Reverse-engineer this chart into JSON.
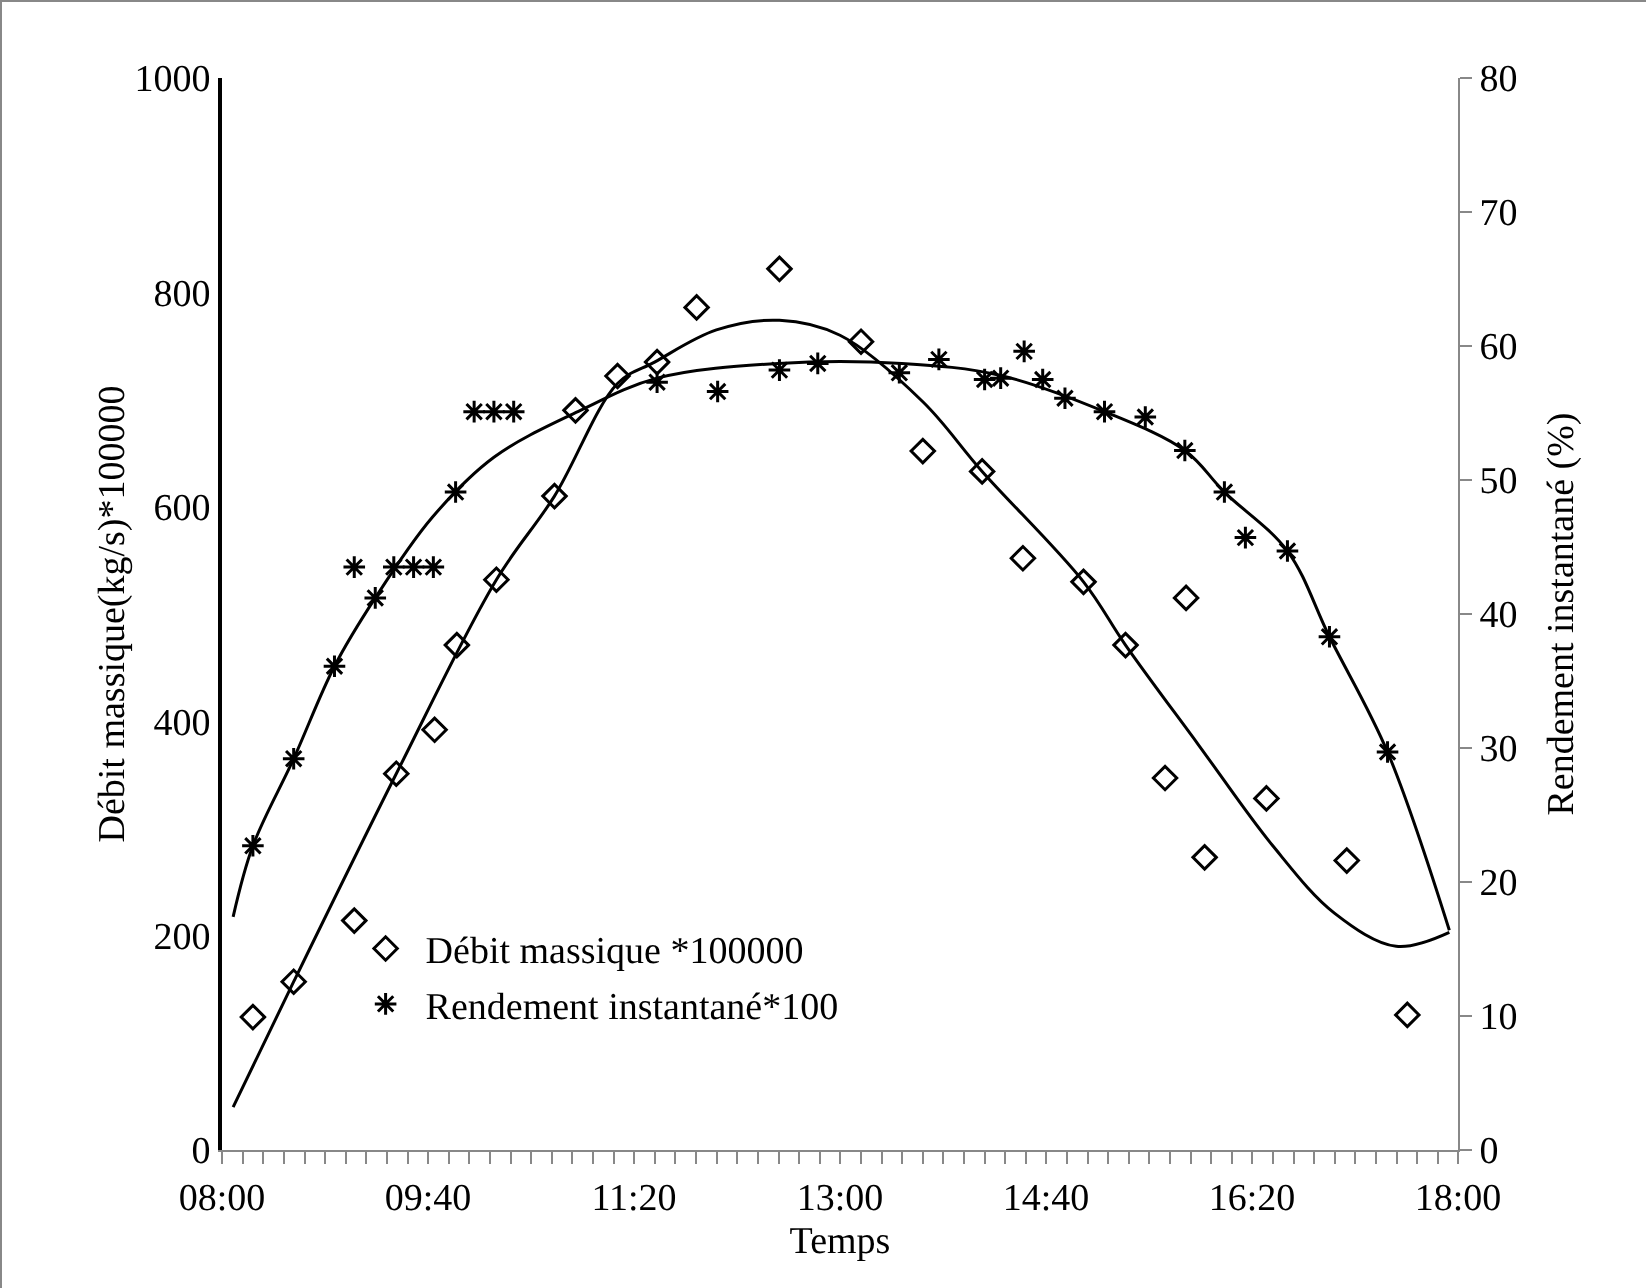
{
  "chart_data": {
    "type": "scatter",
    "xlabel": "Temps",
    "ylabel": "Débit massique(kg/s)*100000",
    "y2label": "Rendement instantané (%)",
    "xlim": [
      8,
      18
    ],
    "xticks": [
      {
        "value": 8,
        "label": "08:00"
      },
      {
        "value": 9.667,
        "label": "09:40"
      },
      {
        "value": 11.333,
        "label": "11:20"
      },
      {
        "value": 13,
        "label": "13:00"
      },
      {
        "value": 14.667,
        "label": "14:40"
      },
      {
        "value": 16.333,
        "label": "16:20"
      },
      {
        "value": 18,
        "label": "18:00"
      }
    ],
    "ylim": [
      0,
      1000
    ],
    "yticks": [
      0,
      200,
      400,
      600,
      800,
      1000
    ],
    "y2lim": [
      0,
      80
    ],
    "y2ticks": [
      0,
      10,
      20,
      30,
      40,
      50,
      60,
      70,
      80
    ],
    "grid": false,
    "legend": "bottom left",
    "series": [
      {
        "name": "Débit massique *100000",
        "marker": "diamond",
        "color": "#000000",
        "x": [
          8.25,
          8.58,
          9.07,
          9.41,
          9.72,
          9.9,
          10.22,
          10.69,
          10.86,
          11.2,
          11.52,
          11.84,
          12.51,
          13.17,
          13.67,
          14.15,
          14.48,
          14.97,
          15.31,
          15.8,
          15.63,
          15.95,
          16.45,
          17.1,
          17.59
        ],
        "values": [
          124,
          157,
          214,
          351,
          392,
          471,
          532,
          610,
          690,
          722,
          735,
          786,
          822,
          754,
          652,
          633,
          552,
          530,
          471,
          515,
          347,
          273,
          328,
          270,
          126
        ]
      },
      {
        "name": "Rendement instantané*100",
        "axis": "y2",
        "marker": "cross",
        "color": "#000000",
        "x": [
          8.25,
          8.58,
          8.91,
          9.07,
          9.24,
          9.39,
          9.55,
          9.71,
          9.89,
          10.04,
          10.2,
          10.36,
          11.52,
          12.01,
          12.51,
          12.82,
          13.48,
          13.8,
          14.17,
          14.3,
          14.49,
          14.64,
          14.82,
          15.14,
          15.47,
          15.79,
          16.11,
          16.28,
          16.62,
          16.96,
          17.43
        ],
        "values": [
          22.7,
          29.2,
          36.1,
          43.5,
          41.2,
          43.5,
          43.5,
          43.5,
          49.1,
          55.1,
          55.1,
          55.1,
          57.3,
          56.6,
          58.2,
          58.7,
          58,
          59,
          57.5,
          57.6,
          59.6,
          57.5,
          56.1,
          55.1,
          54.7,
          52.2,
          49.1,
          45.7,
          44.7,
          38.3,
          29.7
        ]
      },
      {
        "type": "line",
        "marker": "none",
        "line_style": "solid",
        "color": "#000000",
        "x": [
          8.09,
          8.58,
          9.41,
          10.22,
          10.69,
          11.2,
          11.5,
          12,
          12.51,
          13,
          13.67,
          14.15,
          14.97,
          15.31,
          15.9,
          16.5,
          17,
          17.5,
          17.93
        ],
        "values": [
          40,
          157,
          351,
          532,
          610,
          715,
          735,
          765,
          774,
          760,
          698,
          633,
          530,
          471,
          378,
          284,
          221,
          190,
          203
        ]
      },
      {
        "type": "line",
        "axis": "y2",
        "marker": "none",
        "line_style": "solid",
        "color": "#000000",
        "x": [
          8.09,
          8.25,
          8.58,
          8.91,
          9.24,
          9.7,
          10.2,
          10.9,
          11.52,
          12.5,
          13.5,
          14.3,
          15.14,
          15.79,
          16.11,
          16.62,
          16.96,
          17.43,
          17.93
        ],
        "values": [
          17.4,
          22.7,
          29.2,
          36.1,
          41.2,
          47.2,
          51.7,
          55.2,
          57.6,
          58.7,
          58.7,
          57.8,
          55.1,
          52.2,
          49.1,
          44.7,
          38.3,
          29.7,
          16.4
        ]
      }
    ]
  }
}
